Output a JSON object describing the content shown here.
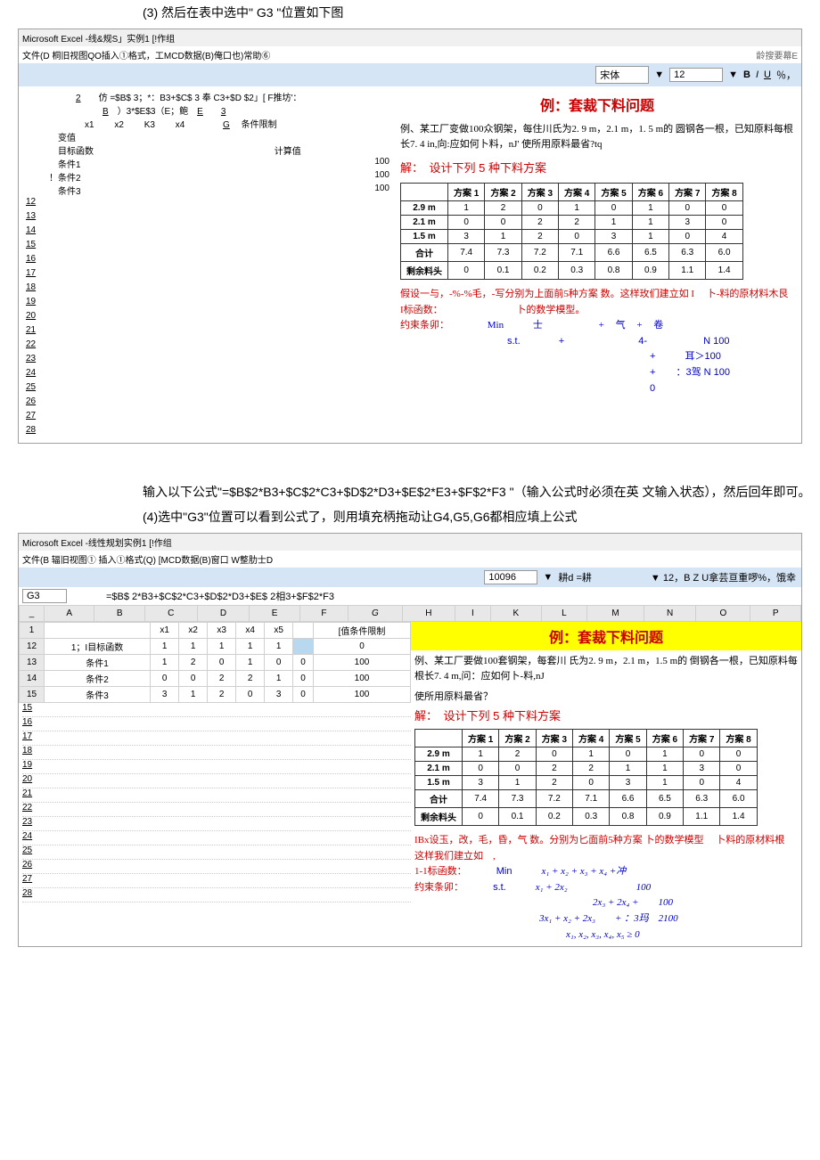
{
  "step3_title": "(3) 然后在表中选中\" G3 \"位置如下图",
  "window1": {
    "title": "Microsoft Excel -线&规S」实例1 [!作组",
    "menu": "文件(D 桐旧视图QO插入①格式，工MCD数据(B)俺口也)常助⑥",
    "right_note": "龄搜要幕E",
    "font_box": "宋体",
    "font_size": "12",
    "toolbar_btns": [
      "B",
      "I",
      "U"
    ],
    "toolbar_extra": "％，",
    "formula_frag": "仿 =$B$ 3；*：B3+$C$ 3 奉 C3+$D $2」[ F推坊'：",
    "formula_frag2": "）3*$E$3（E；鲍",
    "col_letters": [
      "B",
      "E",
      "3",
      "G"
    ],
    "var_row": [
      "x1",
      "x2",
      "K3",
      "x4"
    ],
    "labels": [
      "变值",
      "目标函数",
      "条件1",
      "条件2",
      "条件3"
    ],
    "cond_label": "条件限制",
    "calc_label": "计算值",
    "cond_vals": [
      "100",
      "100",
      "100"
    ],
    "row_nums": [
      "12",
      "13",
      "14",
      "15",
      "16",
      "17",
      "18",
      "19",
      "20",
      "21",
      "22",
      "23",
      "24",
      "25",
      "26",
      "27",
      "28"
    ]
  },
  "example1": {
    "title": "例：套裁下料问题",
    "desc": "例、某工厂变做100众钢架，每住川氏为2. 9 m，2.1 m，1. 5 m的 圆钢各一根，已知原料每根长7. 4 in,向:应如何卜料，nJ' 使所用原料最省?tq",
    "solution_head": "解：　设计下列 5 种下料方案",
    "plan_headers": [
      "",
      "方案 1",
      "方案 2",
      "方案 3",
      "方案 4",
      "方案 5",
      "方案 6",
      "方案 7",
      "方案 8"
    ],
    "plan_rows": [
      [
        "2.9 m",
        "1",
        "2",
        "0",
        "1",
        "0",
        "1",
        "0",
        "0"
      ],
      [
        "2.1 m",
        "0",
        "0",
        "2",
        "2",
        "1",
        "1",
        "3",
        "0"
      ],
      [
        "1.5 m",
        "3",
        "1",
        "2",
        "0",
        "3",
        "1",
        "0",
        "4"
      ],
      [
        "合计",
        "7.4",
        "7.3",
        "7.2",
        "7.1",
        "6.6",
        "6.5",
        "6.3",
        "6.0"
      ],
      [
        "剩余料头",
        "0",
        "0.1",
        "0.2",
        "0.3",
        "0.8",
        "0.9",
        "1.1",
        "1.4"
      ]
    ],
    "assume": "假设一与，-%-%毛，-写分别为上面前5种方案 数。这样玫们建立如 I 　卜-料的原材料木艮",
    "objective_label": "I标函数：",
    "model_label": "卜的数学模型。",
    "constraint_label": "约束条卯：",
    "min_label": "Min",
    "st_label": "s.t.",
    "frags": [
      "士",
      "+",
      "气",
      "+",
      "卷",
      "+",
      "4-",
      "N 100",
      "+",
      "耳＞100",
      "+",
      "：3驾 N 100",
      "0"
    ]
  },
  "formula_text": "输入以下公式\"=$B$2*B3+$C$2*C3+$D$2*D3+$E$2*E3+$F$2*F3 \"（输入公式时必须在英 文输入状态），然后回年即可。",
  "step4_title": "(4)选中\"G3\"位置可以看到公式了，则用填充柄拖动让G4,G5,G6都相应填上公式",
  "window2": {
    "title": "Microsoft Excel -线性规划实例1 [!作组",
    "menu": "文件(B 辐旧视图① 插入①格式(Q) [MCD数据(B)窗口 W整肋士D",
    "zoom": "10096",
    "font_ctrl": "耕d =耕",
    "font_info": "▼ 12，B Z U拿芸亘重啰%，饿幸",
    "cell_name": "G3",
    "formula": "=$B$ 2*B3+$C$2*C3+$D$2*D3+$E$ 2相3+$F$2*F3",
    "col_letters": [
      "A",
      "B",
      "C",
      "D",
      "E",
      "F",
      "G",
      "H",
      "I",
      "K",
      "L",
      "M",
      "N",
      "O",
      "P"
    ],
    "var_header": [
      "",
      "x1",
      "x2",
      "x3",
      "x4",
      "x5",
      "",
      "[值条件限制"
    ],
    "rows": [
      [
        "1；I目标函数",
        "1",
        "1",
        "1",
        "1",
        "1",
        "",
        "0"
      ],
      [
        "条件1",
        "1",
        "2",
        "0",
        "1",
        "0",
        "0",
        "100"
      ],
      [
        "条件2",
        "0",
        "0",
        "2",
        "2",
        "1",
        "0",
        "100"
      ],
      [
        "条件3",
        "3",
        "1",
        "2",
        "0",
        "3",
        "0",
        "100"
      ]
    ],
    "row_nums": [
      "12",
      "13",
      "14",
      "15",
      "16",
      "17",
      "18",
      "19",
      "20",
      "21",
      "22",
      "23",
      "24",
      "25",
      "26",
      "27",
      "28"
    ]
  },
  "example2": {
    "title": "例：套裁下料问题",
    "desc": "例、某工厂要做100套钢架，每套川 氏为2. 9 m，2.1 m，1.5 m的 倒钢各一根，已知原料每根长7. 4 m,问：应如何卜-料,nJ",
    "use_q": "使所用原料最省？",
    "solution_head": "解：　设计下列 5 种下料方案",
    "assume": "IBx设玉，改，毛，昏，气 数。分别为匕面前5种方案 卜的数学模型 　卜料的原材料根",
    "assume2": "这样我们建立如　,",
    "objective_label": "1-1标函数：",
    "constraint_label": "约束条卯：",
    "min_label": "Min",
    "st_label": "s.t.",
    "math_lines": [
      "x₁ + x₂ + x₃ + x₄ +冲",
      "x₁ + 2x₂　　　　　　　100",
      "2x₃ + 2x₄ +　　100",
      "3x₁ + x₂ + 2x₃　　+ ：3玛　2100",
      "x₁, x₂, x₃, x₄, x₅ ≥ 0"
    ]
  }
}
